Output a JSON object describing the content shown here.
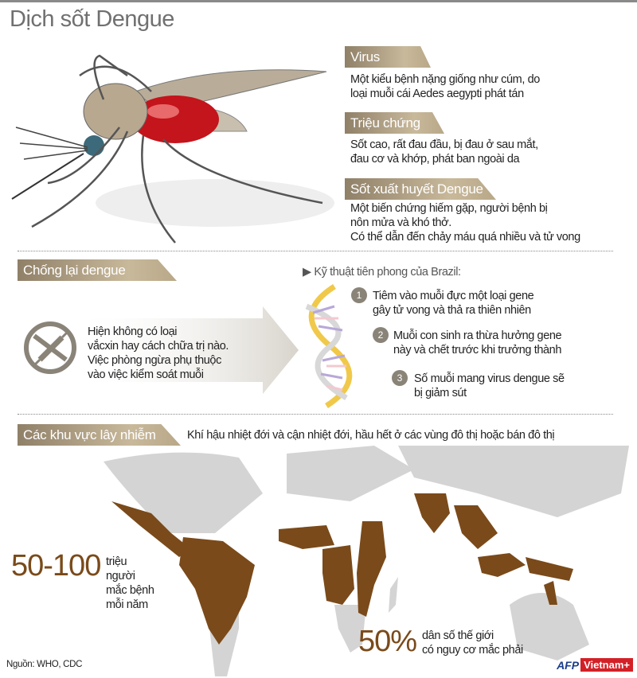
{
  "title": "Dịch sốt Dengue",
  "sections": {
    "virus": {
      "heading": "Virus",
      "lines": [
        "Một kiểu bệnh nặng giống như cúm, do",
        "loại muỗi cái Aedes aegypti phát tán"
      ]
    },
    "symptoms": {
      "heading": "Triệu chứng",
      "lines": [
        "Sốt cao, rất đau đầu, bị đau ở sau mắt,",
        "đau cơ và khớp, phát ban ngoài da"
      ]
    },
    "hemorrhagic": {
      "heading": "Sốt xuất huyết Dengue",
      "lines": [
        "Một biến chứng hiếm gặp, người bệnh bị",
        "nôn mửa và khó thở.",
        "Có thể dẫn đến chảy máu quá nhiều và tử vong"
      ]
    }
  },
  "fight": {
    "heading": "Chống lại dengue",
    "lines": [
      "Hiện không có loại",
      "vắcxin hay cách chữa trị nào.",
      "Việc phòng ngừa phụ thuộc",
      "vào việc kiểm soát muỗi"
    ],
    "brazil_heading": "Kỹ thuật tiên phong của Brazil:",
    "steps": [
      {
        "num": "1",
        "lines": [
          "Tiêm vào muỗi đực một loại gene",
          "gây tử vong và thả ra thiên nhiên"
        ]
      },
      {
        "num": "2",
        "lines": [
          "Muỗi con sinh ra thừa hưởng gene",
          "này và chết trước khi trưởng thành"
        ]
      },
      {
        "num": "3",
        "lines": [
          "Số muỗi mang virus dengue sẽ",
          "bị giảm sút"
        ]
      }
    ],
    "icons": [
      "no-vaccine-syringe-icon",
      "dna-icon",
      "arrow-right-icon"
    ]
  },
  "regions": {
    "heading": "Các khu vực lây nhiễm",
    "description": "Khí hậu nhiệt đới và cận nhiệt đới, hầu hết ở các vùng đô thị hoặc bán đô thị",
    "stat1": {
      "value": "50-100",
      "lines": [
        "triệu",
        "người",
        "mắc bệnh",
        "mỗi năm"
      ]
    },
    "stat2": {
      "value": "50%",
      "lines": [
        "dân số thế giới",
        "có nguy cơ mắc phải"
      ]
    },
    "colors": {
      "affected": "#7a4a1a",
      "unaffected": "#d4d4d4"
    }
  },
  "source": "Nguồn: WHO, CDC",
  "logo": {
    "afp": "AFP",
    "vn": "Vietnam+"
  },
  "colors": {
    "tag": "#a8987c",
    "title": "#707070"
  }
}
